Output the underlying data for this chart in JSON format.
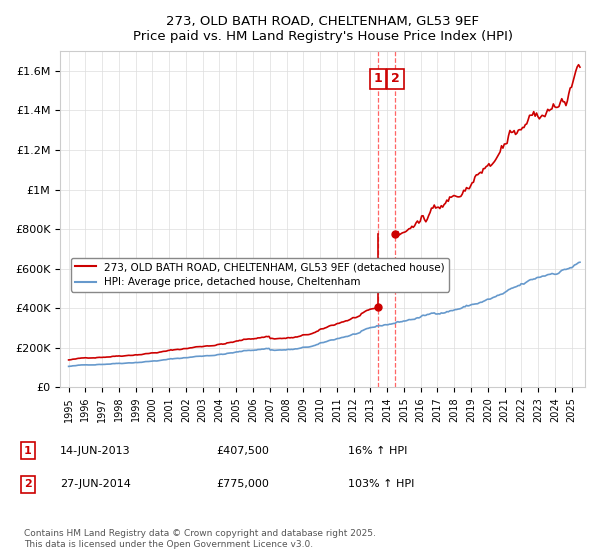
{
  "title": "273, OLD BATH ROAD, CHELTENHAM, GL53 9EF",
  "subtitle": "Price paid vs. HM Land Registry's House Price Index (HPI)",
  "legend_label_red": "273, OLD BATH ROAD, CHELTENHAM, GL53 9EF (detached house)",
  "legend_label_blue": "HPI: Average price, detached house, Cheltenham",
  "annotation1_date": "14-JUN-2013",
  "annotation1_price": "£407,500",
  "annotation1_hpi": "16% ↑ HPI",
  "annotation2_date": "27-JUN-2014",
  "annotation2_price": "£775,000",
  "annotation2_hpi": "103% ↑ HPI",
  "footnote": "Contains HM Land Registry data © Crown copyright and database right 2025.\nThis data is licensed under the Open Government Licence v3.0.",
  "red_color": "#cc0000",
  "blue_color": "#6699cc",
  "dashed_line_color": "#ff6666",
  "annotation_box_color": "#cc0000",
  "ylim_min": 0,
  "ylim_max": 1700000,
  "x_start_year": 1995,
  "x_end_year": 2025,
  "sale1_year": 2013.45,
  "sale1_price": 407500,
  "sale2_year": 2014.49,
  "sale2_price": 775000,
  "background_color": "#ffffff",
  "grid_color": "#dddddd"
}
